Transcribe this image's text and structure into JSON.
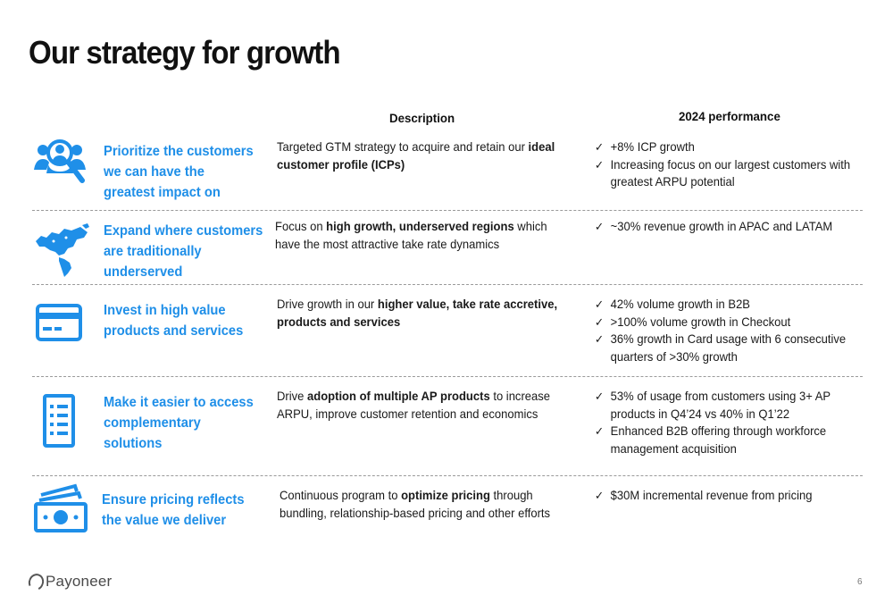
{
  "title": "Our strategy for growth",
  "columns": {
    "description": "Description",
    "performance": "2024 performance"
  },
  "colors": {
    "accent": "#1f8fe8",
    "text": "#1a1a1a",
    "divider": "#9a9a9a"
  },
  "rows": [
    {
      "icon": "customer-magnifier-icon",
      "strategy": [
        "Prioritize the customers",
        "we can have the",
        "greatest impact on"
      ],
      "description": {
        "pre": "Targeted GTM strategy to acquire and retain our ",
        "bold": "ideal customer profile (ICPs)",
        "post": ""
      },
      "performance": [
        "+8% ICP growth",
        "Increasing focus on our largest customers with greatest ARPU potential"
      ]
    },
    {
      "icon": "americas-map-icon",
      "strategy": [
        "Expand where customers",
        "are traditionally",
        "underserved"
      ],
      "description": {
        "pre": "Focus on ",
        "bold": "high growth, underserved regions",
        "post": " which have the most attractive take rate dynamics"
      },
      "performance": [
        "~30% revenue growth in APAC and LATAM"
      ]
    },
    {
      "icon": "credit-card-icon",
      "strategy": [
        "Invest in high value",
        "products and services"
      ],
      "description": {
        "pre": "Drive growth in our ",
        "bold": "higher value, take rate accretive, products and services",
        "post": ""
      },
      "performance": [
        "42% volume growth in B2B",
        ">100% volume growth in Checkout",
        "36% growth in Card usage with 6 consecutive quarters of >30% growth"
      ]
    },
    {
      "icon": "checklist-document-icon",
      "strategy": [
        "Make it easier to access",
        "complementary",
        "solutions"
      ],
      "description": {
        "pre": "Drive ",
        "bold": "adoption of multiple AP products",
        "post": " to increase ARPU, improve customer retention and economics"
      },
      "performance": [
        "53% of usage from customers using 3+ AP products in Q4’24 vs 40% in Q1’22",
        "Enhanced B2B offering through workforce management acquisition"
      ]
    },
    {
      "icon": "cash-bills-icon",
      "strategy": [
        "Ensure pricing reflects",
        "the value we deliver"
      ],
      "description": {
        "pre": "Continuous program to ",
        "bold": "optimize pricing",
        "post": " through bundling, relationship-based pricing and other efforts"
      },
      "performance": [
        "$30M incremental revenue from pricing"
      ]
    }
  ],
  "footer": {
    "logo_text": "Payoneer",
    "page_number": "6"
  }
}
